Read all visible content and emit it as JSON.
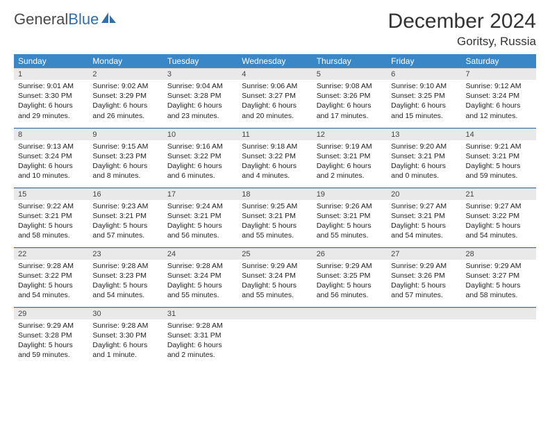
{
  "logo": {
    "text1": "General",
    "text2": "Blue"
  },
  "title": "December 2024",
  "location": "Goritsy, Russia",
  "day_headers": [
    "Sunday",
    "Monday",
    "Tuesday",
    "Wednesday",
    "Thursday",
    "Friday",
    "Saturday"
  ],
  "colors": {
    "header_bg": "#3a87c7",
    "border": "#2f6fb0",
    "daynum_bg": "#e9e9e9"
  },
  "weeks": [
    [
      {
        "n": "1",
        "sunrise": "9:01 AM",
        "sunset": "3:30 PM",
        "daylight": "6 hours and 29 minutes."
      },
      {
        "n": "2",
        "sunrise": "9:02 AM",
        "sunset": "3:29 PM",
        "daylight": "6 hours and 26 minutes."
      },
      {
        "n": "3",
        "sunrise": "9:04 AM",
        "sunset": "3:28 PM",
        "daylight": "6 hours and 23 minutes."
      },
      {
        "n": "4",
        "sunrise": "9:06 AM",
        "sunset": "3:27 PM",
        "daylight": "6 hours and 20 minutes."
      },
      {
        "n": "5",
        "sunrise": "9:08 AM",
        "sunset": "3:26 PM",
        "daylight": "6 hours and 17 minutes."
      },
      {
        "n": "6",
        "sunrise": "9:10 AM",
        "sunset": "3:25 PM",
        "daylight": "6 hours and 15 minutes."
      },
      {
        "n": "7",
        "sunrise": "9:12 AM",
        "sunset": "3:24 PM",
        "daylight": "6 hours and 12 minutes."
      }
    ],
    [
      {
        "n": "8",
        "sunrise": "9:13 AM",
        "sunset": "3:24 PM",
        "daylight": "6 hours and 10 minutes."
      },
      {
        "n": "9",
        "sunrise": "9:15 AM",
        "sunset": "3:23 PM",
        "daylight": "6 hours and 8 minutes."
      },
      {
        "n": "10",
        "sunrise": "9:16 AM",
        "sunset": "3:22 PM",
        "daylight": "6 hours and 6 minutes."
      },
      {
        "n": "11",
        "sunrise": "9:18 AM",
        "sunset": "3:22 PM",
        "daylight": "6 hours and 4 minutes."
      },
      {
        "n": "12",
        "sunrise": "9:19 AM",
        "sunset": "3:21 PM",
        "daylight": "6 hours and 2 minutes."
      },
      {
        "n": "13",
        "sunrise": "9:20 AM",
        "sunset": "3:21 PM",
        "daylight": "6 hours and 0 minutes."
      },
      {
        "n": "14",
        "sunrise": "9:21 AM",
        "sunset": "3:21 PM",
        "daylight": "5 hours and 59 minutes."
      }
    ],
    [
      {
        "n": "15",
        "sunrise": "9:22 AM",
        "sunset": "3:21 PM",
        "daylight": "5 hours and 58 minutes."
      },
      {
        "n": "16",
        "sunrise": "9:23 AM",
        "sunset": "3:21 PM",
        "daylight": "5 hours and 57 minutes."
      },
      {
        "n": "17",
        "sunrise": "9:24 AM",
        "sunset": "3:21 PM",
        "daylight": "5 hours and 56 minutes."
      },
      {
        "n": "18",
        "sunrise": "9:25 AM",
        "sunset": "3:21 PM",
        "daylight": "5 hours and 55 minutes."
      },
      {
        "n": "19",
        "sunrise": "9:26 AM",
        "sunset": "3:21 PM",
        "daylight": "5 hours and 55 minutes."
      },
      {
        "n": "20",
        "sunrise": "9:27 AM",
        "sunset": "3:21 PM",
        "daylight": "5 hours and 54 minutes."
      },
      {
        "n": "21",
        "sunrise": "9:27 AM",
        "sunset": "3:22 PM",
        "daylight": "5 hours and 54 minutes."
      }
    ],
    [
      {
        "n": "22",
        "sunrise": "9:28 AM",
        "sunset": "3:22 PM",
        "daylight": "5 hours and 54 minutes."
      },
      {
        "n": "23",
        "sunrise": "9:28 AM",
        "sunset": "3:23 PM",
        "daylight": "5 hours and 54 minutes."
      },
      {
        "n": "24",
        "sunrise": "9:28 AM",
        "sunset": "3:24 PM",
        "daylight": "5 hours and 55 minutes."
      },
      {
        "n": "25",
        "sunrise": "9:29 AM",
        "sunset": "3:24 PM",
        "daylight": "5 hours and 55 minutes."
      },
      {
        "n": "26",
        "sunrise": "9:29 AM",
        "sunset": "3:25 PM",
        "daylight": "5 hours and 56 minutes."
      },
      {
        "n": "27",
        "sunrise": "9:29 AM",
        "sunset": "3:26 PM",
        "daylight": "5 hours and 57 minutes."
      },
      {
        "n": "28",
        "sunrise": "9:29 AM",
        "sunset": "3:27 PM",
        "daylight": "5 hours and 58 minutes."
      }
    ],
    [
      {
        "n": "29",
        "sunrise": "9:29 AM",
        "sunset": "3:28 PM",
        "daylight": "5 hours and 59 minutes."
      },
      {
        "n": "30",
        "sunrise": "9:28 AM",
        "sunset": "3:30 PM",
        "daylight": "6 hours and 1 minute."
      },
      {
        "n": "31",
        "sunrise": "9:28 AM",
        "sunset": "3:31 PM",
        "daylight": "6 hours and 2 minutes."
      },
      null,
      null,
      null,
      null
    ]
  ],
  "labels": {
    "sunrise": "Sunrise:",
    "sunset": "Sunset:",
    "daylight": "Daylight:"
  }
}
